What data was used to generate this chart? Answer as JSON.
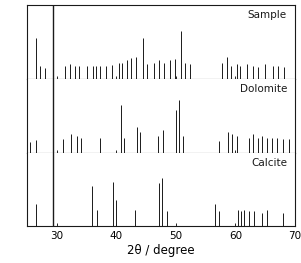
{
  "xlabel": "2θ / degree",
  "xlim": [
    25,
    70
  ],
  "xticks": [
    30,
    40,
    50,
    60,
    70
  ],
  "ylim": [
    0,
    1.0
  ],
  "panels": [
    {
      "label": "Sample",
      "peaks": [
        [
          26.5,
          0.55
        ],
        [
          27.2,
          0.18
        ],
        [
          28.0,
          0.15
        ],
        [
          29.4,
          1.0
        ],
        [
          31.4,
          0.18
        ],
        [
          32.2,
          0.2
        ],
        [
          33.0,
          0.18
        ],
        [
          33.8,
          0.17
        ],
        [
          35.0,
          0.18
        ],
        [
          36.0,
          0.17
        ],
        [
          36.6,
          0.17
        ],
        [
          37.3,
          0.18
        ],
        [
          38.2,
          0.17
        ],
        [
          39.2,
          0.19
        ],
        [
          40.5,
          0.22
        ],
        [
          41.0,
          0.22
        ],
        [
          41.8,
          0.25
        ],
        [
          42.5,
          0.28
        ],
        [
          43.3,
          0.3
        ],
        [
          44.5,
          0.55
        ],
        [
          45.2,
          0.2
        ],
        [
          46.3,
          0.22
        ],
        [
          47.2,
          0.25
        ],
        [
          48.0,
          0.22
        ],
        [
          49.0,
          0.25
        ],
        [
          49.8,
          0.27
        ],
        [
          50.8,
          0.65
        ],
        [
          51.5,
          0.22
        ],
        [
          52.3,
          0.2
        ],
        [
          57.8,
          0.22
        ],
        [
          58.6,
          0.3
        ],
        [
          59.2,
          0.18
        ],
        [
          60.2,
          0.2
        ],
        [
          60.8,
          0.18
        ],
        [
          62.0,
          0.2
        ],
        [
          63.0,
          0.17
        ],
        [
          63.8,
          0.16
        ],
        [
          65.0,
          0.2
        ],
        [
          66.3,
          0.17
        ],
        [
          67.2,
          0.17
        ],
        [
          68.2,
          0.16
        ]
      ]
    },
    {
      "label": "Dolomite",
      "peaks": [
        [
          25.5,
          0.14
        ],
        [
          26.5,
          0.17
        ],
        [
          29.4,
          0.22
        ],
        [
          31.0,
          0.18
        ],
        [
          32.3,
          0.25
        ],
        [
          33.3,
          0.22
        ],
        [
          34.0,
          0.2
        ],
        [
          37.3,
          0.2
        ],
        [
          40.7,
          0.65
        ],
        [
          41.2,
          0.2
        ],
        [
          43.5,
          0.35
        ],
        [
          44.0,
          0.28
        ],
        [
          47.0,
          0.22
        ],
        [
          47.8,
          0.3
        ],
        [
          50.0,
          0.58
        ],
        [
          50.6,
          0.72
        ],
        [
          51.2,
          0.22
        ],
        [
          57.3,
          0.16
        ],
        [
          58.8,
          0.28
        ],
        [
          59.5,
          0.25
        ],
        [
          60.3,
          0.22
        ],
        [
          62.2,
          0.2
        ],
        [
          63.0,
          0.25
        ],
        [
          63.8,
          0.2
        ],
        [
          64.5,
          0.22
        ],
        [
          65.3,
          0.2
        ],
        [
          66.2,
          0.2
        ],
        [
          67.0,
          0.2
        ],
        [
          68.0,
          0.18
        ],
        [
          69.0,
          0.18
        ]
      ]
    },
    {
      "label": "Calcite",
      "peaks": [
        [
          26.5,
          0.3
        ],
        [
          29.4,
          0.35
        ],
        [
          35.9,
          0.55
        ],
        [
          36.8,
          0.22
        ],
        [
          39.4,
          0.6
        ],
        [
          39.9,
          0.35
        ],
        [
          43.2,
          0.22
        ],
        [
          47.1,
          0.58
        ],
        [
          47.7,
          0.65
        ],
        [
          48.5,
          0.2
        ],
        [
          56.5,
          0.3
        ],
        [
          57.2,
          0.2
        ],
        [
          60.5,
          0.22
        ],
        [
          61.0,
          0.2
        ],
        [
          61.5,
          0.22
        ],
        [
          62.3,
          0.2
        ],
        [
          63.2,
          0.2
        ],
        [
          64.5,
          0.18
        ],
        [
          65.3,
          0.22
        ],
        [
          68.0,
          0.18
        ]
      ]
    }
  ],
  "line_color": "#1a1a1a",
  "bg_color": "#ffffff",
  "border_color": "#1a1a1a",
  "label_fontsize": 7.5,
  "xlabel_fontsize": 8.5,
  "tick_fontsize": 7.5
}
